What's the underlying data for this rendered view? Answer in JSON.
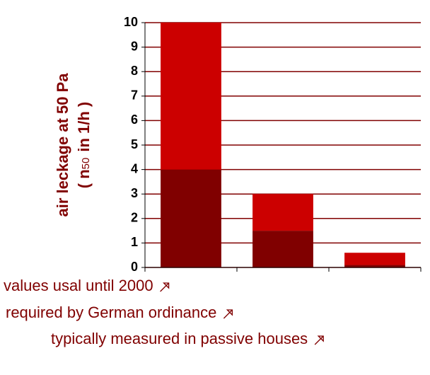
{
  "chart_data": {
    "type": "stacked-bar",
    "y_label": "air leckage at 50 Pa",
    "y_label_2": {
      "prefix": "( n",
      "subscript": "50",
      "suffix": "in  1/h )"
    },
    "categories": [
      "values usal until 2000",
      "required by German ordinance",
      "typically measured in passive houses"
    ],
    "series": [
      {
        "color": "#800000",
        "values": [
          4,
          1.5,
          0.1
        ]
      },
      {
        "color": "#cc0000",
        "values": [
          6,
          1.5,
          0.5
        ]
      }
    ],
    "ylim": [
      0,
      10
    ],
    "yticks": [
      0,
      1,
      2,
      3,
      4,
      5,
      6,
      7,
      8,
      9,
      10
    ],
    "grid": true
  }
}
